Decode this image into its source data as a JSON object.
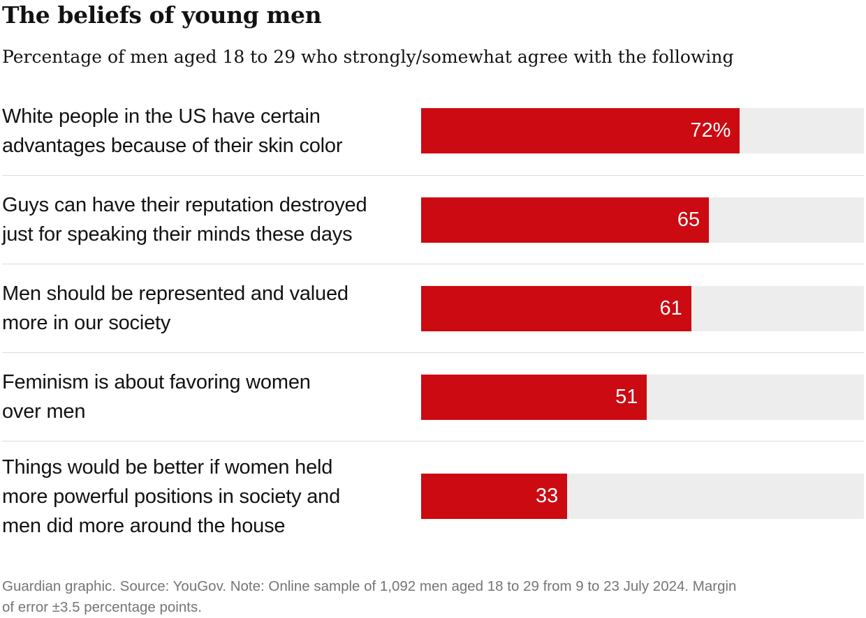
{
  "header": {
    "title": "The beliefs of young men",
    "subtitle": "Percentage of men aged 18 to 29 who strongly/somewhat agree with the following"
  },
  "chart_data": {
    "type": "bar",
    "orientation": "horizontal",
    "title": "The beliefs of young men",
    "subtitle": "Percentage of men aged 18 to 29 who strongly/somewhat agree with the following",
    "categories": [
      "White people in the US have certain advantages because of their skin color",
      "Guys can have their reputation destroyed just for speaking their minds these days",
      "Men should be represented and valued more in our society",
      "Feminism is about favoring women over men",
      "Things would be better if women held more powerful positions in society and men did more around the house"
    ],
    "values": [
      72,
      65,
      61,
      51,
      33
    ],
    "value_labels": [
      "72%",
      "65",
      "61",
      "51",
      "33"
    ],
    "xlim": [
      0,
      100
    ],
    "grid": false,
    "legend": false,
    "bar_color": "#cc0a11",
    "track_color": "#ededed",
    "separator_color": "#dcdcdc"
  },
  "display": {
    "rows": [
      {
        "label_lines": [
          "White people in the US have certain",
          "advantages because of their skin color"
        ]
      },
      {
        "label_lines": [
          "Guys can have their reputation destroyed",
          "just for speaking their minds these days"
        ]
      },
      {
        "label_lines": [
          "Men should be represented and valued",
          "more in our society"
        ]
      },
      {
        "label_lines": [
          "Feminism is about favoring women",
          "over men"
        ]
      },
      {
        "label_lines": [
          "Things would be better if women held",
          "more powerful positions in society and",
          "men did more around the house"
        ]
      }
    ]
  },
  "footer": {
    "text": "Guardian graphic. Source: YouGov. Note: Online sample of 1,092 men aged 18 to 29 from 9 to 23 July 2024. Margin of error ±3.5 percentage points.",
    "lines": [
      "Guardian graphic. Source: YouGov. Note: Online sample of 1,092 men aged 18 to 29 from 9 to 23 July 2024. Margin",
      "of error ±3.5 percentage points."
    ]
  },
  "colors": {
    "bar": "#cc0a11",
    "track": "#ededed",
    "separator": "#dcdcdc",
    "text": "#121212",
    "footer_text": "#757575",
    "value_text": "#ffffff"
  }
}
